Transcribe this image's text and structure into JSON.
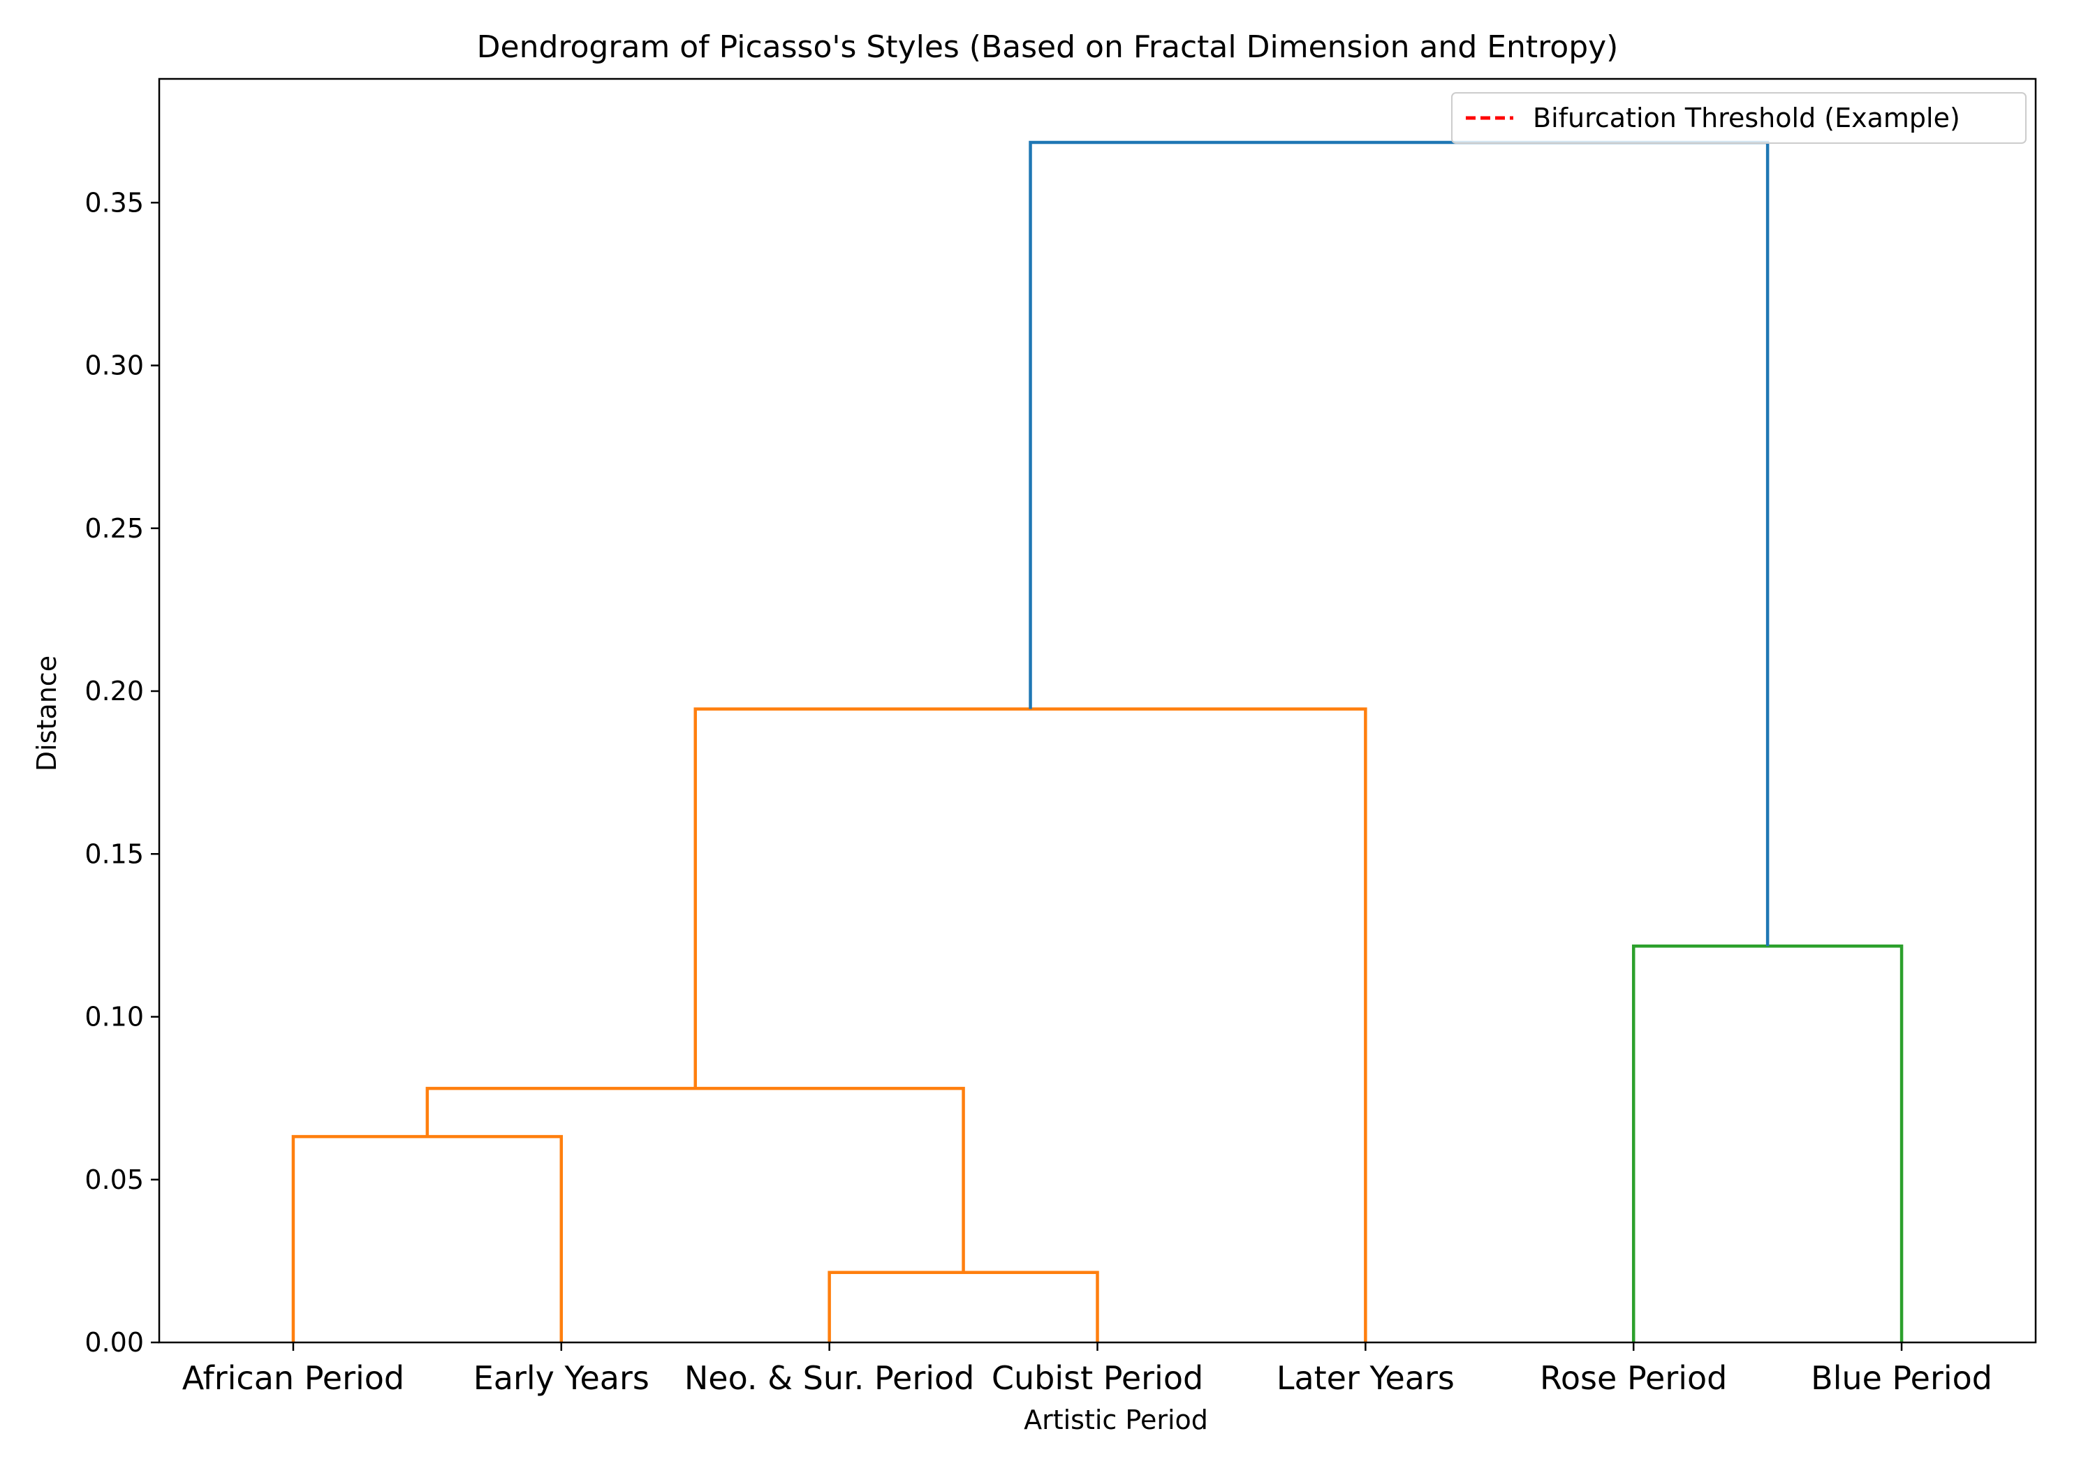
{
  "chart_data": {
    "type": "dendrogram",
    "title": "Dendrogram of Picasso's Styles (Based on Fractal Dimension and Entropy)",
    "xlabel": "Artistic Period",
    "ylabel": "Distance",
    "ylim": [
      0,
      0.388
    ],
    "yticks": [
      0.0,
      0.05,
      0.1,
      0.15,
      0.2,
      0.25,
      0.3,
      0.35
    ],
    "ytick_labels": [
      "0.00",
      "0.05",
      "0.10",
      "0.15",
      "0.20",
      "0.25",
      "0.30",
      "0.35"
    ],
    "leaves": [
      "African Period",
      "Early Years",
      "Neo. & Sur. Period",
      "Cubist Period",
      "Later Years",
      "Rose Period",
      "Blue Period"
    ],
    "merges": [
      {
        "left": 2,
        "right": 3,
        "height": 0.0215,
        "color": "#ff7f0e"
      },
      {
        "left": 0,
        "right": 1,
        "height": 0.0632,
        "color": "#ff7f0e"
      },
      {
        "left": 7,
        "right": 8,
        "height": 0.078,
        "color": "#ff7f0e"
      },
      {
        "left": 5,
        "right": 6,
        "height": 0.1217,
        "color": "#2ca02c"
      },
      {
        "left": 9,
        "right": 4,
        "height": 0.1945,
        "color": "#ff7f0e"
      },
      {
        "left": 11,
        "right": 10,
        "height": 0.3685,
        "color": "#1f77b4"
      }
    ],
    "legend": {
      "placement": "top-right",
      "entries": [
        {
          "label": "Bifurcation Threshold (Example)",
          "color": "#ff0000",
          "style": "dashed"
        }
      ]
    },
    "grid": false
  }
}
